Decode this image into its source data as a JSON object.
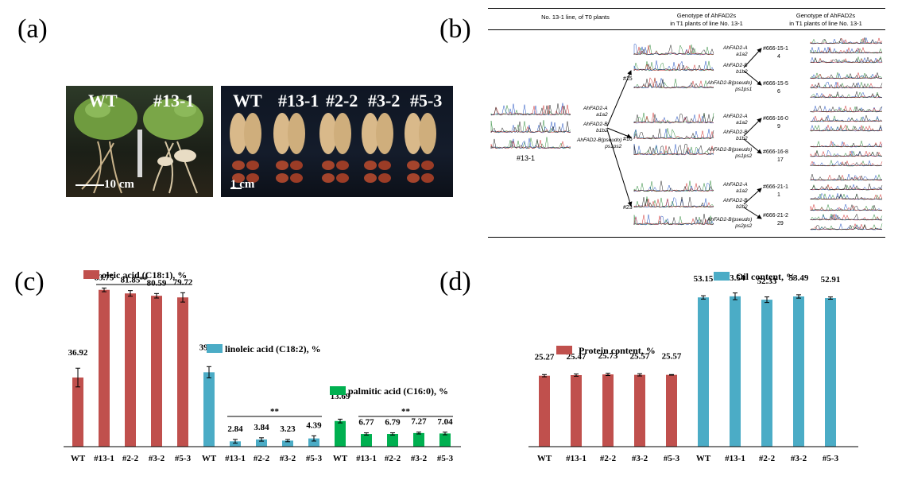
{
  "panel_labels": {
    "a": "(a)",
    "b": "(b)",
    "c": "(c)",
    "d": "(d)"
  },
  "panel_a": {
    "plants_labels": [
      "WT",
      "#13-1"
    ],
    "plants_scale": "10 cm",
    "pods_labels": [
      "WT",
      "#13-1",
      "#2-2",
      "#3-2",
      "#5-3"
    ],
    "pods_scale": "1 cm"
  },
  "panel_b": {
    "headers": [
      "No. 13-1 line, of T0 plants",
      "Genotype of AhFAD2s\nin T1 plants of line No. 13-1",
      "Genotype of AhFAD2s\nin T1 plants of line No. 13-1"
    ],
    "t0": {
      "id": "#13-1",
      "genotypes": [
        "AhFAD2-A\na1a2",
        "AhFAD2-B\nb1b2",
        "AhFAD2-B(pseudo)\nps1ps2"
      ]
    },
    "t1": [
      {
        "id": "#15",
        "genotypes": [
          "AhFAD2-A\na1a2",
          "AhFAD2-B\nb1b2",
          "AhFAD2-B(pseudo)\nps1ps1"
        ]
      },
      {
        "id": "#16",
        "genotypes": [
          "AhFAD2-A\na1a2",
          "AhFAD2-B\nb1b2",
          "AhFAD2-B(pseudo)\nps1ps2"
        ]
      },
      {
        "id": "#23",
        "genotypes": [
          "AhFAD2-A\na1a2",
          "AhFAD2-B\nb2b2",
          "AhFAD2-B(pseudo)\nps2ps2"
        ]
      }
    ],
    "t2": [
      {
        "id": "#666-15-1",
        "count": "4"
      },
      {
        "id": "#666-15-5",
        "count": "6"
      },
      {
        "id": "#666-16-0",
        "count": "9"
      },
      {
        "id": "#666-16-8",
        "count": "17"
      },
      {
        "id": "#666-21-1",
        "count": "1"
      },
      {
        "id": "#666-21-2",
        "count": "29"
      }
    ]
  },
  "chart_data": [
    {
      "type": "bar",
      "panel": "c",
      "categories": [
        "WT",
        "#13-1",
        "#2-2",
        "#3-2",
        "#5-3"
      ],
      "series": [
        {
          "name": "oleic acid (C18:1), %",
          "color": "#c0504d",
          "values": [
            36.92,
            83.75,
            81.85,
            80.59,
            79.72
          ],
          "errors": [
            5.0,
            1.0,
            1.5,
            1.2,
            2.5
          ]
        },
        {
          "name": "linoleic acid (C18:2), %",
          "color": "#4bacc6",
          "values": [
            39.75,
            2.84,
            3.84,
            3.23,
            4.39
          ],
          "errors": [
            3.0,
            1.0,
            0.9,
            0.6,
            1.4
          ]
        },
        {
          "name": "palmitic acid (C16:0), %",
          "color": "#00b050",
          "values": [
            13.69,
            6.77,
            6.79,
            7.27,
            7.04
          ],
          "errors": [
            1.0,
            0.6,
            0.6,
            0.5,
            0.7
          ]
        }
      ],
      "significance": "**",
      "ylim": [
        0,
        90
      ]
    },
    {
      "type": "bar",
      "panel": "d",
      "categories": [
        "WT",
        "#13-1",
        "#2-2",
        "#3-2",
        "#5-3"
      ],
      "series": [
        {
          "name": "Protein content, %",
          "color": "#c0504d",
          "values": [
            25.27,
            25.47,
            25.73,
            25.57,
            25.57
          ],
          "errors": [
            0.4,
            0.4,
            0.4,
            0.4,
            0.1
          ]
        },
        {
          "name": "Oil content, %",
          "color": "#4bacc6",
          "values": [
            53.15,
            53.54,
            52.33,
            53.49,
            52.91
          ],
          "errors": [
            0.6,
            1.2,
            1.0,
            0.6,
            0.4
          ]
        }
      ],
      "ylim": [
        0,
        60
      ]
    }
  ]
}
